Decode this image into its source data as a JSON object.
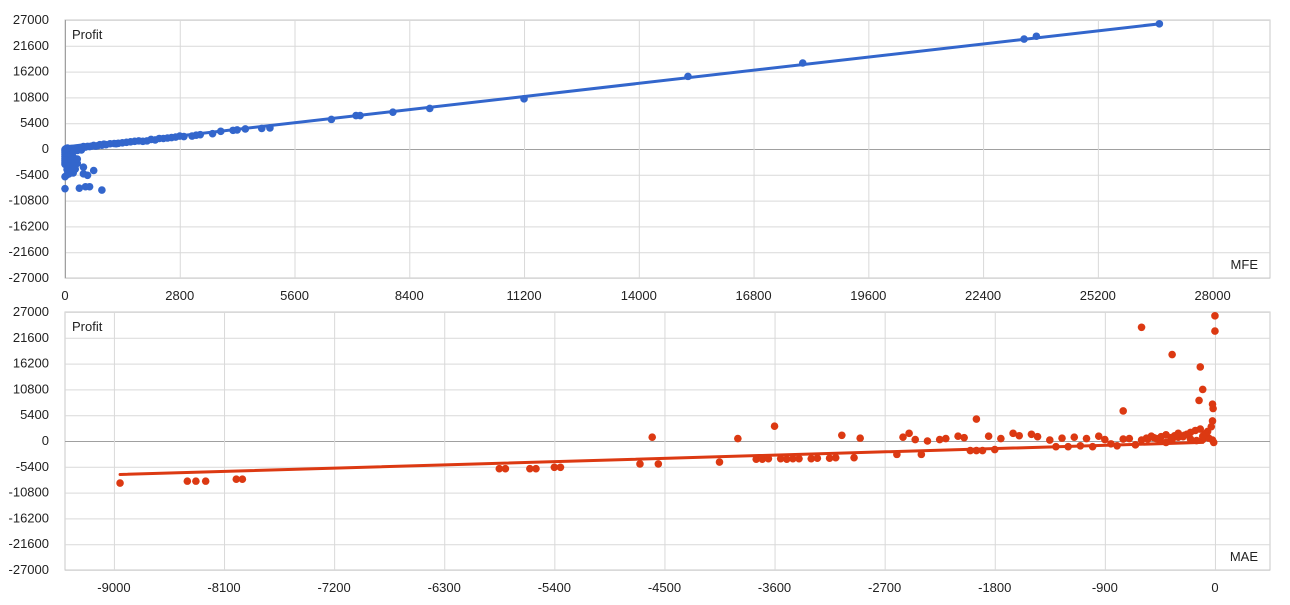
{
  "colors": {
    "mfe": "#3366cc",
    "mae": "#dc3912",
    "grid": "#d9d9d9",
    "zero_line": "#a0a0a0"
  },
  "chart_data": [
    {
      "id": "mfe",
      "type": "scatter",
      "title": "",
      "ylabel": "Profit",
      "xlabel": "MFE",
      "xlim": [
        0,
        29400
      ],
      "ylim": [
        -27000,
        27000
      ],
      "x_ticks": [
        0,
        2800,
        5600,
        8400,
        11200,
        14000,
        16800,
        19600,
        22400,
        25200,
        28000
      ],
      "y_ticks": [
        27000,
        21600,
        16200,
        10800,
        5400,
        0,
        -5400,
        -10800,
        -16200,
        -21600,
        -27000
      ],
      "grid": true,
      "trendline": [
        [
          0,
          0
        ],
        [
          26700,
          26200
        ]
      ],
      "points": [
        [
          26700,
          26200
        ],
        [
          23700,
          23600
        ],
        [
          23400,
          23000
        ],
        [
          18000,
          18000
        ],
        [
          15200,
          15200
        ],
        [
          11200,
          10500
        ],
        [
          8900,
          8500
        ],
        [
          8000,
          7700
        ],
        [
          7200,
          7000
        ],
        [
          7100,
          7000
        ],
        [
          6500,
          6200
        ],
        [
          5000,
          4400
        ],
        [
          4800,
          4300
        ],
        [
          4400,
          4200
        ],
        [
          4200,
          4000
        ],
        [
          4100,
          3900
        ],
        [
          3800,
          3700
        ],
        [
          3600,
          3200
        ],
        [
          3300,
          3000
        ],
        [
          3200,
          2900
        ],
        [
          3100,
          2700
        ],
        [
          2900,
          2600
        ],
        [
          2800,
          2700
        ],
        [
          2700,
          2500
        ],
        [
          2600,
          2400
        ],
        [
          2500,
          2300
        ],
        [
          2400,
          2200
        ],
        [
          2300,
          2200
        ],
        [
          2200,
          1900
        ],
        [
          2100,
          2000
        ],
        [
          2000,
          1700
        ],
        [
          1900,
          1600
        ],
        [
          1800,
          1700
        ],
        [
          1700,
          1600
        ],
        [
          1600,
          1500
        ],
        [
          1500,
          1400
        ],
        [
          1400,
          1300
        ],
        [
          1300,
          1200
        ],
        [
          1250,
          1100
        ],
        [
          1200,
          1150
        ],
        [
          1100,
          1100
        ],
        [
          1000,
          900
        ],
        [
          950,
          1000
        ],
        [
          900,
          800
        ],
        [
          850,
          900
        ],
        [
          800,
          700
        ],
        [
          750,
          600
        ],
        [
          700,
          750
        ],
        [
          650,
          600
        ],
        [
          600,
          500
        ],
        [
          550,
          550
        ],
        [
          500,
          400
        ],
        [
          450,
          500
        ],
        [
          400,
          350
        ],
        [
          350,
          300
        ],
        [
          300,
          250
        ],
        [
          250,
          200
        ],
        [
          200,
          150
        ],
        [
          150,
          120
        ],
        [
          100,
          80
        ],
        [
          50,
          30
        ],
        [
          20,
          10
        ],
        [
          700,
          -4500
        ],
        [
          900,
          -8600
        ],
        [
          550,
          -5500
        ],
        [
          450,
          -5200
        ],
        [
          600,
          -7900
        ],
        [
          500,
          -7900
        ],
        [
          0,
          -8300
        ],
        [
          350,
          -8200
        ],
        [
          450,
          -3800
        ],
        [
          0,
          -5800
        ],
        [
          50,
          -5400
        ],
        [
          100,
          -5200
        ],
        [
          200,
          -5000
        ],
        [
          0,
          -3200
        ],
        [
          0,
          -2800
        ],
        [
          0,
          -2400
        ],
        [
          0,
          -2000
        ],
        [
          0,
          -1600
        ],
        [
          0,
          -1200
        ],
        [
          0,
          -800
        ],
        [
          0,
          -400
        ],
        [
          50,
          -600
        ],
        [
          100,
          -900
        ],
        [
          150,
          -1300
        ],
        [
          200,
          -1700
        ],
        [
          250,
          -2500
        ],
        [
          300,
          -3000
        ],
        [
          150,
          -2300
        ],
        [
          100,
          -3600
        ],
        [
          200,
          -3500
        ],
        [
          300,
          -2100
        ],
        [
          50,
          -4300
        ],
        [
          150,
          -4600
        ],
        [
          250,
          -4200
        ],
        [
          100,
          -200
        ],
        [
          200,
          -500
        ],
        [
          300,
          -300
        ],
        [
          400,
          -200
        ],
        [
          0,
          -100
        ],
        [
          30,
          100
        ],
        [
          60,
          200
        ]
      ]
    },
    {
      "id": "mae",
      "type": "scatter",
      "title": "",
      "ylabel": "Profit",
      "xlabel": "MAE",
      "xlim": [
        -9400,
        450
      ],
      "ylim": [
        -27000,
        27000
      ],
      "x_ticks": [
        -9000,
        -8100,
        -7200,
        -6300,
        -5400,
        -4500,
        -3600,
        -2700,
        -1800,
        -900,
        0
      ],
      "y_ticks": [
        27000,
        21600,
        16200,
        10800,
        5400,
        0,
        -5400,
        -10800,
        -16200,
        -21600,
        -27000
      ],
      "grid": true,
      "trendline": [
        [
          -8950,
          -7000
        ],
        [
          -100,
          -300
        ]
      ],
      "points": [
        [
          -8950,
          -8800
        ],
        [
          -8400,
          -8400
        ],
        [
          -8330,
          -8400
        ],
        [
          -8250,
          -8400
        ],
        [
          -8000,
          -8000
        ],
        [
          -7950,
          -8000
        ],
        [
          -5850,
          -5800
        ],
        [
          -5800,
          -5800
        ],
        [
          -5600,
          -5800
        ],
        [
          -5550,
          -5800
        ],
        [
          -5400,
          -5500
        ],
        [
          -5350,
          -5500
        ],
        [
          -4700,
          -4800
        ],
        [
          -4550,
          -4800
        ],
        [
          -4600,
          800
        ],
        [
          -4050,
          -4400
        ],
        [
          -3900,
          500
        ],
        [
          -3750,
          -3800
        ],
        [
          -3700,
          -3800
        ],
        [
          -3650,
          -3700
        ],
        [
          -3600,
          3100
        ],
        [
          -3550,
          -3700
        ],
        [
          -3500,
          -3800
        ],
        [
          -3450,
          -3700
        ],
        [
          -3400,
          -3700
        ],
        [
          -3300,
          -3700
        ],
        [
          -3250,
          -3600
        ],
        [
          -3150,
          -3600
        ],
        [
          -3100,
          -3500
        ],
        [
          -2950,
          -3500
        ],
        [
          -3050,
          1200
        ],
        [
          -2900,
          600
        ],
        [
          -2600,
          -2800
        ],
        [
          -2550,
          800
        ],
        [
          -2500,
          1600
        ],
        [
          -2450,
          300
        ],
        [
          -2400,
          -2800
        ],
        [
          -2350,
          0
        ],
        [
          -2250,
          300
        ],
        [
          -2200,
          500
        ],
        [
          -2100,
          1000
        ],
        [
          -2050,
          700
        ],
        [
          -2000,
          -2000
        ],
        [
          -1950,
          -2000
        ],
        [
          -1900,
          -2000
        ],
        [
          -1850,
          1000
        ],
        [
          -1800,
          -1800
        ],
        [
          -1750,
          500
        ],
        [
          -1950,
          4600
        ],
        [
          -1650,
          1600
        ],
        [
          -1600,
          1100
        ],
        [
          -1500,
          1400
        ],
        [
          -1450,
          900
        ],
        [
          -1350,
          200
        ],
        [
          -1300,
          -1200
        ],
        [
          -1250,
          600
        ],
        [
          -1200,
          -1200
        ],
        [
          -1150,
          800
        ],
        [
          -1100,
          -1000
        ],
        [
          -1050,
          500
        ],
        [
          -1000,
          -1200
        ],
        [
          -950,
          1000
        ],
        [
          -900,
          300
        ],
        [
          -850,
          -600
        ],
        [
          -800,
          -1000
        ],
        [
          -750,
          400
        ],
        [
          -700,
          500
        ],
        [
          -650,
          -800
        ],
        [
          -600,
          200
        ],
        [
          -550,
          400
        ],
        [
          -500,
          700
        ],
        [
          -450,
          100
        ],
        [
          -400,
          -300
        ],
        [
          -350,
          300
        ],
        [
          -300,
          800
        ],
        [
          -250,
          1200
        ],
        [
          -200,
          400
        ],
        [
          -150,
          100
        ],
        [
          -100,
          300
        ],
        [
          -50,
          600
        ],
        [
          -20,
          200
        ],
        [
          -10,
          -300
        ],
        [
          -750,
          6300
        ],
        [
          -600,
          23800
        ],
        [
          -350,
          18100
        ],
        [
          -120,
          15500
        ],
        [
          -100,
          10800
        ],
        [
          -130,
          8500
        ],
        [
          -20,
          7700
        ],
        [
          -15,
          6800
        ],
        [
          0,
          23000
        ],
        [
          0,
          26200
        ],
        [
          -20,
          4200
        ],
        [
          -30,
          3000
        ],
        [
          -60,
          2000
        ],
        [
          -80,
          1500
        ],
        [
          -100,
          1000
        ],
        [
          -120,
          2500
        ],
        [
          -160,
          2200
        ],
        [
          -200,
          1800
        ],
        [
          -230,
          1400
        ],
        [
          -260,
          900
        ],
        [
          -300,
          1600
        ],
        [
          -330,
          1100
        ],
        [
          -360,
          700
        ],
        [
          -400,
          1300
        ],
        [
          -440,
          900
        ],
        [
          -480,
          500
        ],
        [
          -520,
          1000
        ],
        [
          -560,
          600
        ]
      ]
    }
  ]
}
